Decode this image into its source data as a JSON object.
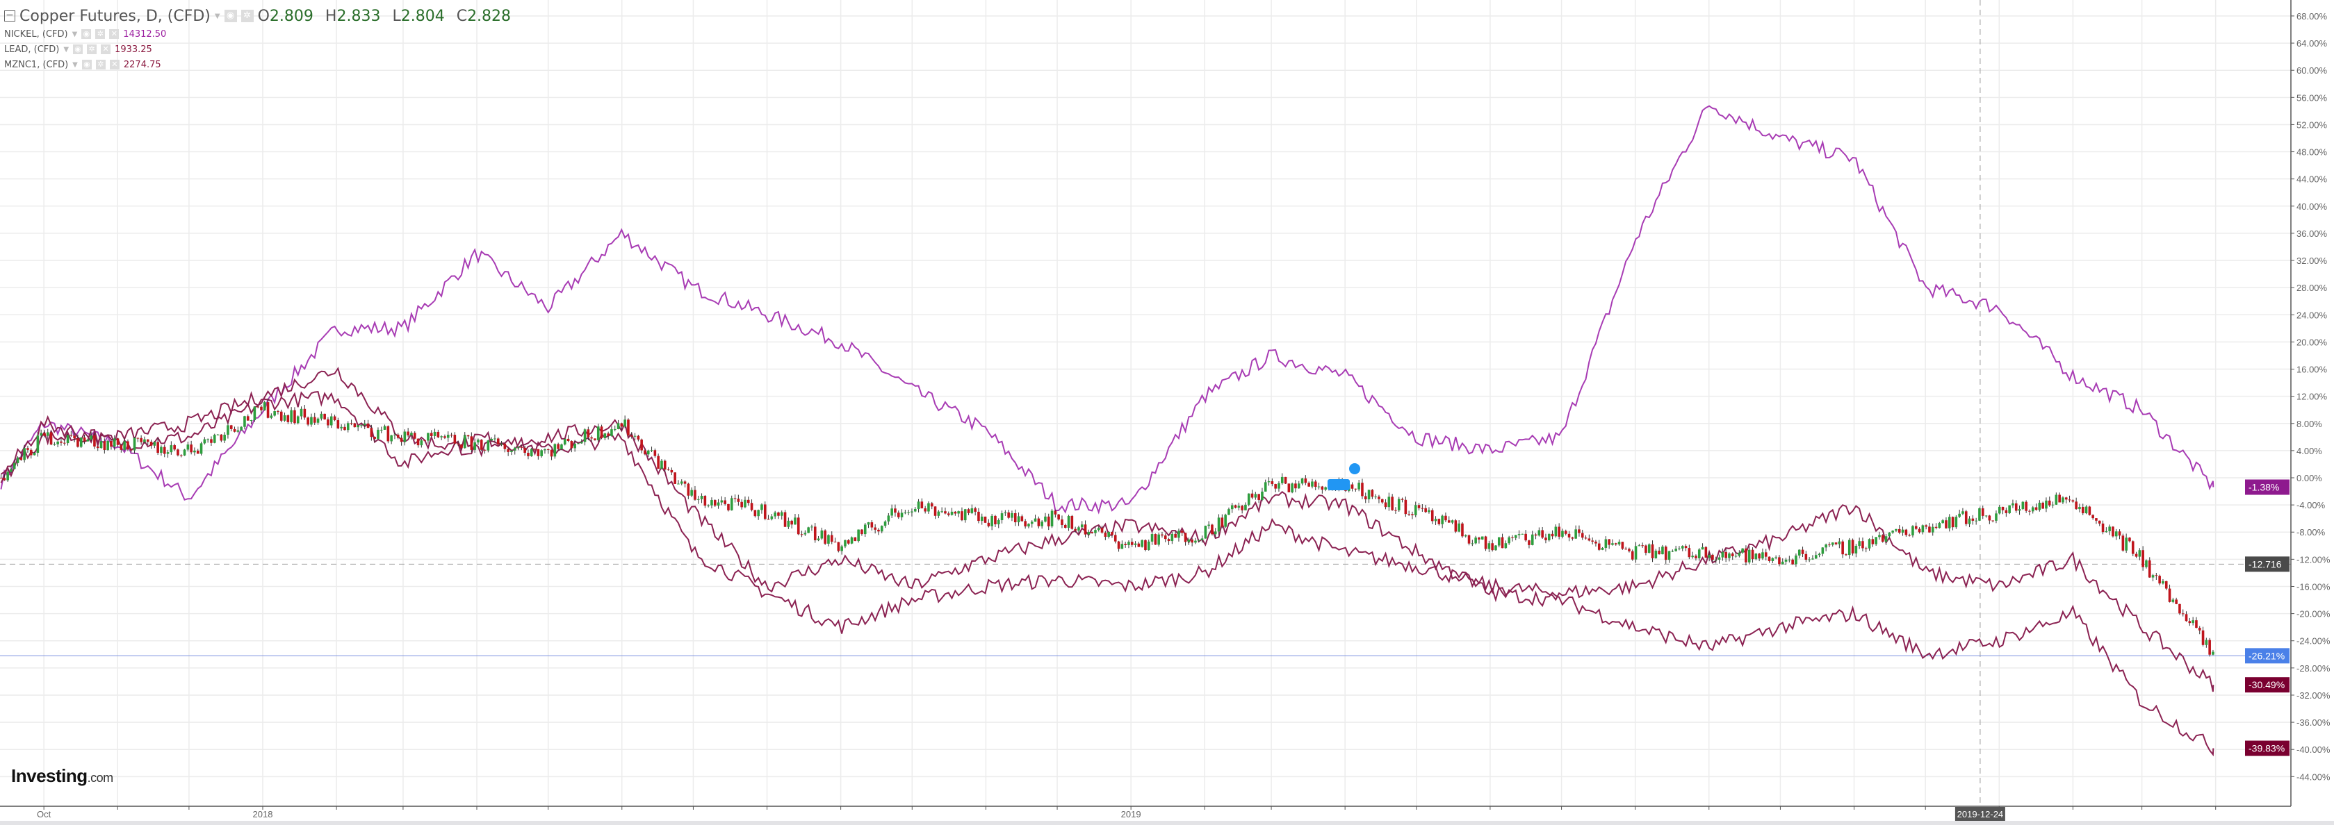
{
  "legend": {
    "main": {
      "title": "Copper Futures, D, (CFD)",
      "o_label": "O",
      "o": "2.809",
      "h_label": "H",
      "h": "2.833",
      "l_label": "L",
      "l": "2.804",
      "c_label": "C",
      "c": "2.828"
    },
    "overlays": [
      {
        "title": "NICKEL, (CFD)",
        "value": "14312.50",
        "color": "#9c1fa0"
      },
      {
        "title": "LEAD, (CFD)",
        "value": "1933.25",
        "color": "#8b1a40"
      },
      {
        "title": "MZNC1, (CFD)",
        "value": "2274.75",
        "color": "#8b1a40"
      }
    ]
  },
  "logo": {
    "brand": "Investing",
    "suffix": ".com"
  },
  "chart_data": {
    "type": "line",
    "ylim": [
      -46,
      70
    ],
    "yticks": [
      "68.00%",
      "64.00%",
      "60.00%",
      "56.00%",
      "52.00%",
      "48.00%",
      "44.00%",
      "40.00%",
      "36.00%",
      "32.00%",
      "28.00%",
      "24.00%",
      "20.00%",
      "16.00%",
      "12.00%",
      "8.00%",
      "4.00%",
      "0.00%",
      "-4.00%",
      "-8.00%",
      "-12.00%",
      "-16.00%",
      "-20.00%",
      "-24.00%",
      "-28.00%",
      "-32.00%",
      "-36.00%",
      "-40.00%",
      "-44.00%"
    ],
    "ytick_values": [
      68,
      64,
      60,
      56,
      52,
      48,
      44,
      40,
      36,
      32,
      28,
      24,
      20,
      16,
      12,
      8,
      4,
      0,
      -4,
      -8,
      -12,
      -16,
      -20,
      -24,
      -28,
      -32,
      -36,
      -40,
      -44
    ],
    "xticks": [
      {
        "label": "Oct",
        "date": "2017-10-01"
      },
      {
        "label": "2018",
        "date": "2018-01-01"
      },
      {
        "label": "2019",
        "date": "2019-01-01"
      }
    ],
    "crosshair": {
      "date_label": "2019-12-24",
      "date": "2019-12-24",
      "value_label": "-12.716",
      "value": -12.716
    },
    "dates": [
      "2017-09-13",
      "2017-10-01",
      "2017-11-01",
      "2017-12-01",
      "2018-01-01",
      "2018-02-01",
      "2018-03-01",
      "2018-04-01",
      "2018-05-01",
      "2018-06-01",
      "2018-07-01",
      "2018-08-01",
      "2018-09-01",
      "2018-10-01",
      "2018-11-01",
      "2018-12-01",
      "2019-01-01",
      "2019-02-01",
      "2019-03-01",
      "2019-04-01",
      "2019-05-01",
      "2019-06-01",
      "2019-07-01",
      "2019-08-01",
      "2019-09-01",
      "2019-10-01",
      "2019-11-01",
      "2019-12-01",
      "2020-01-01",
      "2020-02-01",
      "2020-03-01",
      "2020-03-31"
    ],
    "series": [
      {
        "name": "NICKEL, (CFD)",
        "color": "#a83cb4",
        "last_label": "-1.38%",
        "label_bg": "#8e1a8e",
        "values": [
          -0.6,
          8,
          5,
          -3,
          10,
          22,
          22,
          33,
          25,
          36,
          28,
          24,
          20,
          13,
          7,
          -4,
          -4,
          12,
          18,
          15,
          6,
          4,
          6,
          35,
          55,
          50,
          47,
          28,
          25,
          15,
          10,
          -1.38
        ]
      },
      {
        "name": "LEAD, (CFD)",
        "color": "#8b2252",
        "last_label": "-30.49%",
        "label_bg": "#7a0030",
        "values": [
          0,
          8,
          5,
          6,
          11,
          12,
          2,
          6,
          4,
          6,
          -11,
          -17,
          -22,
          -18,
          -16,
          -15,
          -16,
          -14,
          -7,
          -11,
          -13,
          -16,
          -17,
          -16,
          -12,
          -9,
          -4,
          -14,
          -16,
          -12,
          -22,
          -30.49
        ]
      },
      {
        "name": "MZNC1, (CFD)",
        "color": "#8b2252",
        "last_label": "-39.83%",
        "label_bg": "#7a0030",
        "values": [
          0,
          6,
          6,
          8,
          12,
          16,
          6,
          4,
          6,
          8,
          -5,
          -16,
          -12,
          -16,
          -12,
          -9,
          -7,
          -9,
          -3,
          -4,
          -11,
          -17,
          -18,
          -22,
          -25,
          -22,
          -20,
          -26,
          -24,
          -20,
          -33,
          -39.83
        ]
      },
      {
        "name": "Copper Futures, D, (CFD)",
        "type": "candlestick",
        "up_color": "#2e9e3e",
        "down_color": "#c0141c",
        "last_label": "-26.21%",
        "label_bg": "#4a80e8",
        "values": [
          0,
          6,
          5,
          4,
          10,
          8,
          6,
          5,
          4,
          8,
          -3,
          -5,
          -10,
          -4,
          -6,
          -6,
          -10,
          -8,
          -1,
          -1,
          -5,
          -10,
          -8,
          -11,
          -11,
          -12,
          -10,
          -7,
          -5,
          -3,
          -12,
          -26.21
        ]
      }
    ]
  }
}
